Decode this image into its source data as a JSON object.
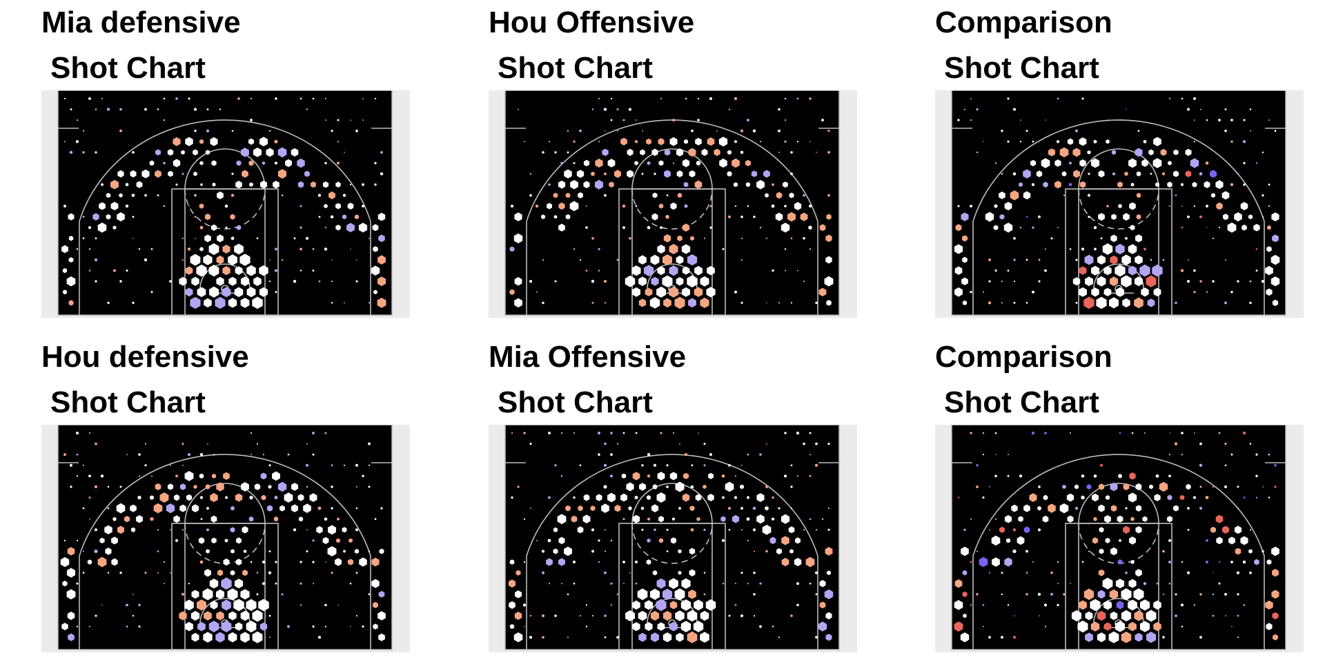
{
  "colors": {
    "background": "#ffffff",
    "court_bg": "#ebebeb",
    "court_fill": "#000000",
    "court_lines": "#bdbdbd",
    "neutral_hex": "#ffffff",
    "hot_hex": "#f4a582",
    "cold_hex": "#b2a5f2",
    "strong_hot": "#e8665a",
    "strong_cold": "#7a63f0"
  },
  "panels": [
    {
      "title": "Mia defensive",
      "subtitle": "Shot Chart"
    },
    {
      "title": "Hou Offensive",
      "subtitle": "Shot Chart"
    },
    {
      "title": "Comparison",
      "subtitle": "Shot Chart"
    },
    {
      "title": "Hou defensive",
      "subtitle": "Shot Chart"
    },
    {
      "title": "Mia Offensive",
      "subtitle": "Shot Chart"
    },
    {
      "title": "Comparison",
      "subtitle": "Shot Chart"
    }
  ],
  "chart_data": [
    {
      "type": "hexbin",
      "title": "Mia defensive",
      "subtitle": "Shot Chart",
      "seed": 11,
      "hot": 0.22,
      "cold": 0.12,
      "strong": 0.0,
      "density": 0.85
    },
    {
      "type": "hexbin",
      "title": "Hou Offensive",
      "subtitle": "Shot Chart",
      "seed": 23,
      "hot": 0.25,
      "cold": 0.12,
      "strong": 0.0,
      "density": 0.9
    },
    {
      "type": "hexbin",
      "title": "Comparison",
      "subtitle": "Shot Chart",
      "seed": 37,
      "hot": 0.22,
      "cold": 0.16,
      "strong": 0.18,
      "density": 0.8
    },
    {
      "type": "hexbin",
      "title": "Hou defensive",
      "subtitle": "Shot Chart",
      "seed": 41,
      "hot": 0.2,
      "cold": 0.2,
      "strong": 0.0,
      "density": 0.9
    },
    {
      "type": "hexbin",
      "title": "Mia Offensive",
      "subtitle": "Shot Chart",
      "seed": 53,
      "hot": 0.22,
      "cold": 0.16,
      "strong": 0.0,
      "density": 0.85
    },
    {
      "type": "hexbin",
      "title": "Comparison",
      "subtitle": "Shot Chart",
      "seed": 67,
      "hot": 0.2,
      "cold": 0.2,
      "strong": 0.2,
      "density": 0.8
    }
  ]
}
